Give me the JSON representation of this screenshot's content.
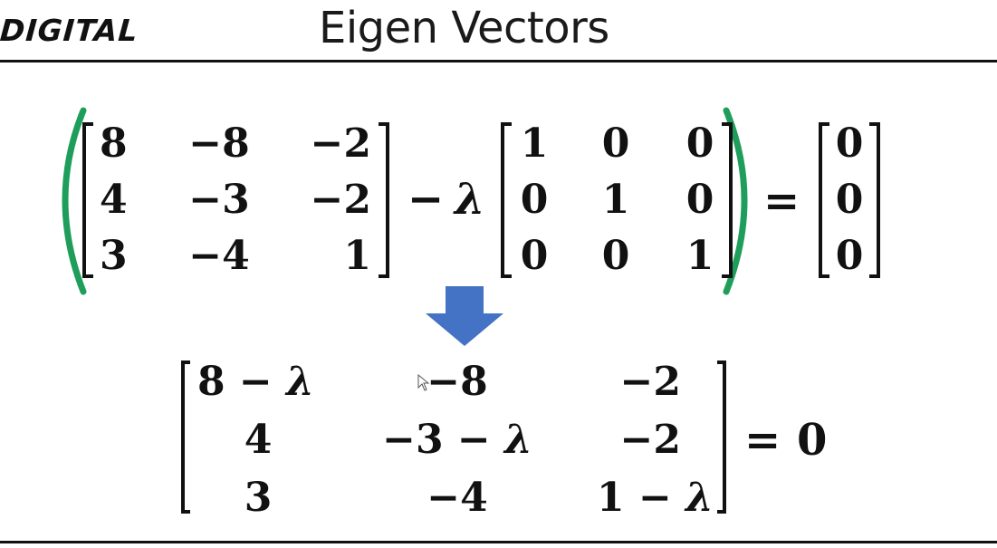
{
  "slide": {
    "logo": "DIGITAL",
    "title": "Eigen Vectors",
    "accent_color": "#1e9e5a",
    "arrow_color": "#4472c4"
  },
  "equation1": {
    "matrix_a": [
      [
        "8",
        "−8",
        "−2"
      ],
      [
        "4",
        "−3",
        "−2"
      ],
      [
        "3",
        "−4",
        "1"
      ]
    ],
    "minus": "−",
    "lambda": "λ",
    "identity": [
      [
        "1",
        "0",
        "0"
      ],
      [
        "0",
        "1",
        "0"
      ],
      [
        "0",
        "0",
        "1"
      ]
    ],
    "equals": "=",
    "zero_vector": [
      "0",
      "0",
      "0"
    ]
  },
  "equation2": {
    "matrix": [
      [
        "8 − λ",
        "−8",
        "−2"
      ],
      [
        "4",
        "−3 − λ",
        "−2"
      ],
      [
        "3",
        "−4",
        "1 − λ"
      ]
    ],
    "equals": "=",
    "rhs": "0"
  },
  "icons": {
    "down_arrow": "down-arrow-icon",
    "cursor": "mouse-pointer-icon"
  }
}
